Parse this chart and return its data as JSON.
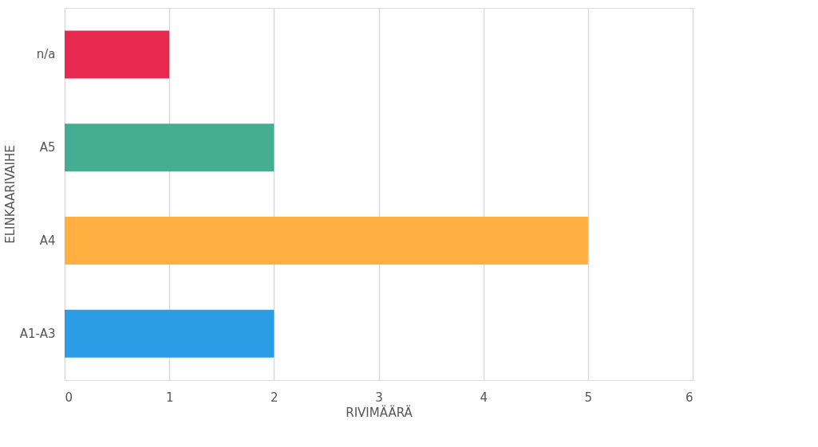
{
  "chart_data": {
    "type": "bar",
    "orientation": "horizontal",
    "xlabel": "RIVIMÄÄRÄ",
    "ylabel": "ELINKAARIVAIHE",
    "categories": [
      "n/a",
      "A5",
      "A4",
      "A1-A3"
    ],
    "values": [
      1,
      2,
      5,
      2
    ],
    "colors": [
      "#e8294f",
      "#45ad92",
      "#ffb040",
      "#2a9de6"
    ],
    "xlim": [
      0,
      6
    ],
    "xticks": [
      0,
      1,
      2,
      3,
      4,
      5,
      6
    ],
    "grid": "x",
    "legend": false
  }
}
